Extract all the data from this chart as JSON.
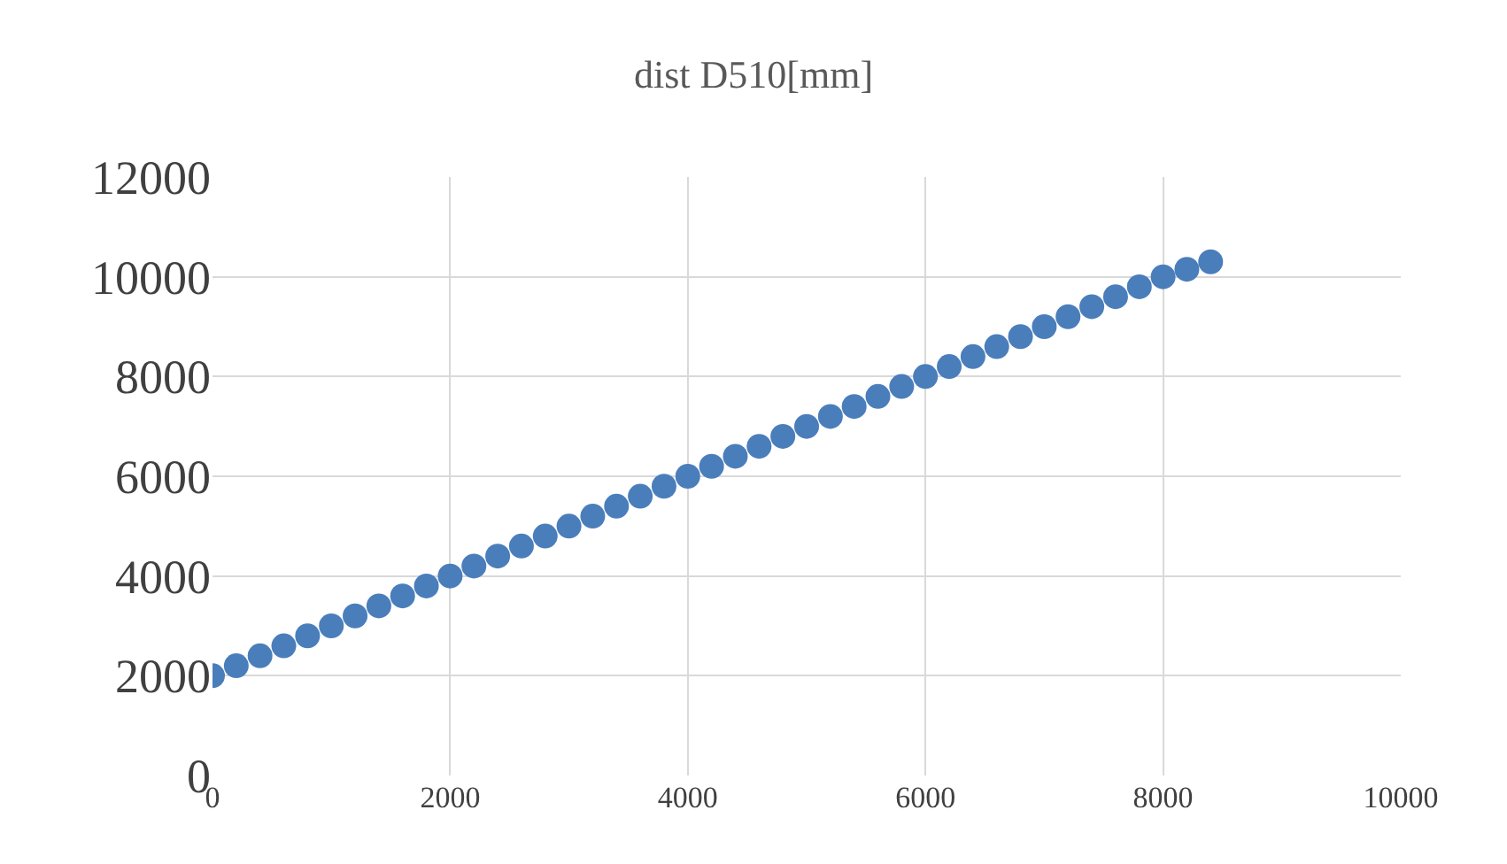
{
  "chart_data": {
    "type": "scatter",
    "title": "dist D510[mm]",
    "x": [
      0,
      200,
      400,
      600,
      800,
      1000,
      1200,
      1400,
      1600,
      1800,
      2000,
      2200,
      2400,
      2600,
      2800,
      3000,
      3200,
      3400,
      3600,
      3800,
      4000,
      4200,
      4400,
      4600,
      4800,
      5000,
      5200,
      5400,
      5600,
      5800,
      6000,
      6200,
      6400,
      6600,
      6800,
      7000,
      7200,
      7400,
      7600,
      7800,
      8000,
      8200,
      8400
    ],
    "series": [
      {
        "color": "#4a7ebb",
        "values": [
          2000,
          2200,
          2400,
          2600,
          2800,
          3000,
          3200,
          3400,
          3600,
          3800,
          4000,
          4200,
          4400,
          4600,
          4800,
          5000,
          5200,
          5400,
          5600,
          5800,
          6000,
          6200,
          6400,
          6600,
          6800,
          7000,
          7200,
          7400,
          7600,
          7800,
          8000,
          8200,
          8400,
          8600,
          8800,
          9000,
          9200,
          9400,
          9600,
          9800,
          10000,
          10150,
          10300
        ]
      }
    ],
    "xlim": [
      0,
      10000
    ],
    "xticks": [
      0,
      2000,
      4000,
      6000,
      8000,
      10000
    ],
    "ylim": [
      0,
      12000
    ],
    "yticks": [
      0,
      2000,
      4000,
      6000,
      8000,
      10000,
      12000
    ],
    "grid": true,
    "marker": "circle",
    "legend": false
  }
}
